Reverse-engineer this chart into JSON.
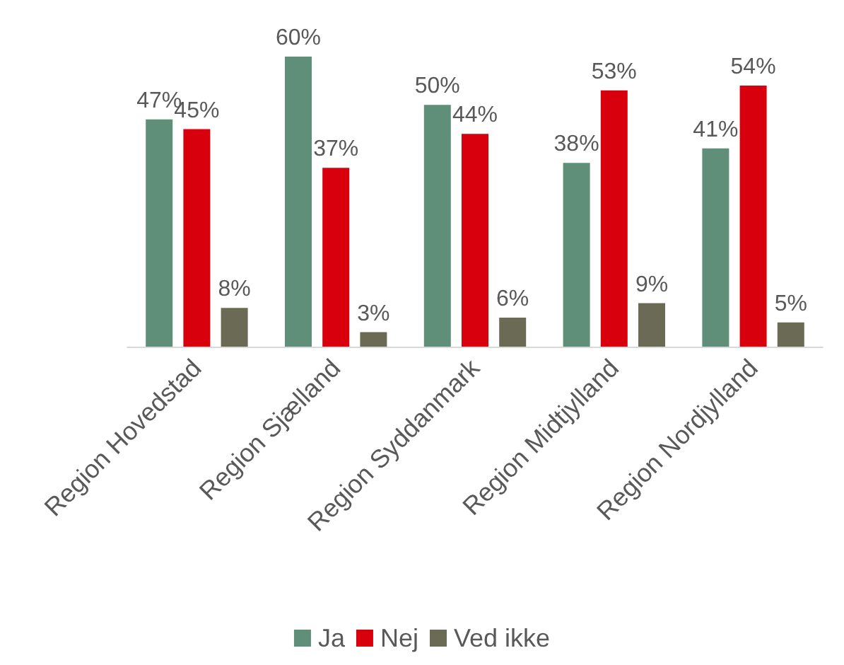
{
  "chart_data": {
    "type": "bar",
    "categories": [
      "Region Hovedstad",
      "Region Sjælland",
      "Region Syddanmark",
      "Region Midtjylland",
      "Region Nordjylland"
    ],
    "series": [
      {
        "name": "Ja",
        "color": "#5f8f78",
        "values": [
          47,
          60,
          50,
          38,
          41
        ],
        "value_labels": [
          "47%",
          "60%",
          "50%",
          "38%",
          "41%"
        ]
      },
      {
        "name": "Nej",
        "color": "#d9000d",
        "values": [
          45,
          37,
          44,
          53,
          54
        ],
        "value_labels": [
          "45%",
          "37%",
          "44%",
          "53%",
          "54%"
        ]
      },
      {
        "name": "Ved ikke",
        "color": "#6b6b55",
        "values": [
          8,
          3,
          6,
          9,
          5
        ],
        "value_labels": [
          "8%",
          "3%",
          "6%",
          "9%",
          "5%"
        ]
      }
    ],
    "legend": "bottom"
  }
}
